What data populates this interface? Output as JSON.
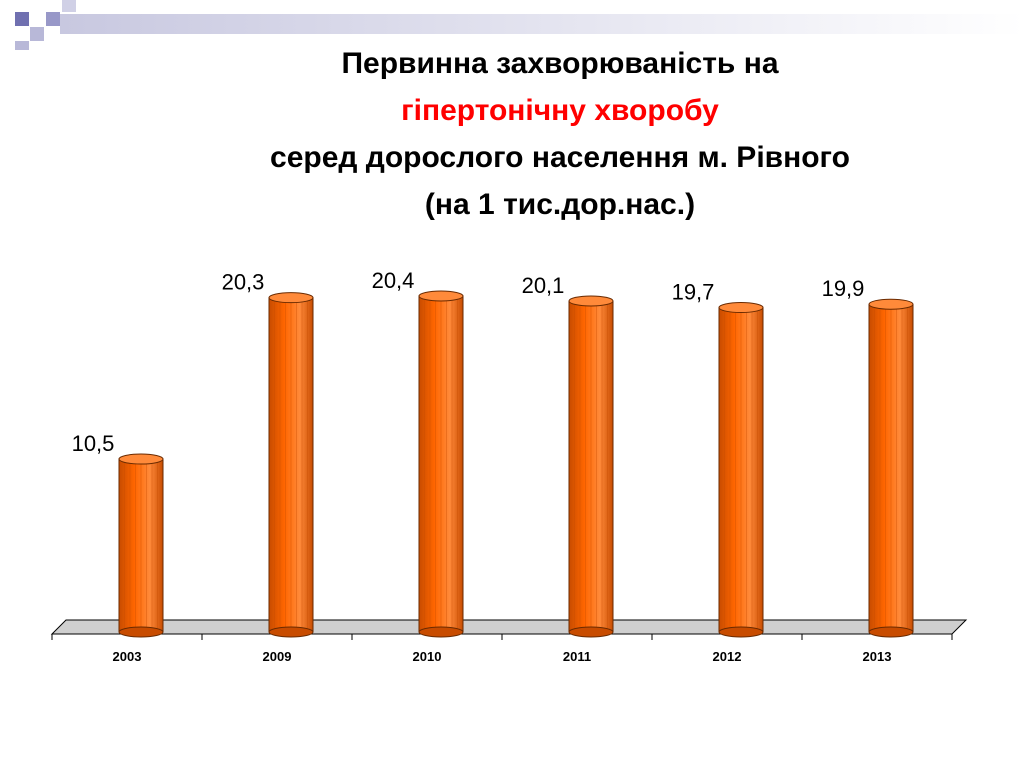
{
  "title": {
    "line1": "Первинна захворюваність на",
    "line2": "гіпертонічну хворобу",
    "line3": "серед дорослого населення м. Рівного",
    "line4": "(на 1 тис.дор.нас.)"
  },
  "colors": {
    "bar": "#ff6600",
    "bar_dark": "#c84c00",
    "bar_top": "#ff8a3a",
    "highlight_text": "#ff0000",
    "deco_square": "#9898c8",
    "deco_bar": "#d8d8e8"
  },
  "chart_data": {
    "type": "bar",
    "style": "3d-cylinder",
    "categories": [
      "2003",
      "2009",
      "2010",
      "2011",
      "2012",
      "2013"
    ],
    "values": [
      10.5,
      20.3,
      20.4,
      20.1,
      19.7,
      19.9
    ],
    "labels": [
      "10,5",
      "20,3",
      "20,4",
      "20,1",
      "19,7",
      "19,9"
    ],
    "title": "Первинна захворюваність на гіпертонічну хворобу серед дорослого населення м. Рівного (на 1 тис.дор.нас.)",
    "xlabel": "",
    "ylabel": "",
    "ylim": [
      0,
      21
    ],
    "grid": false,
    "legend": "none"
  }
}
